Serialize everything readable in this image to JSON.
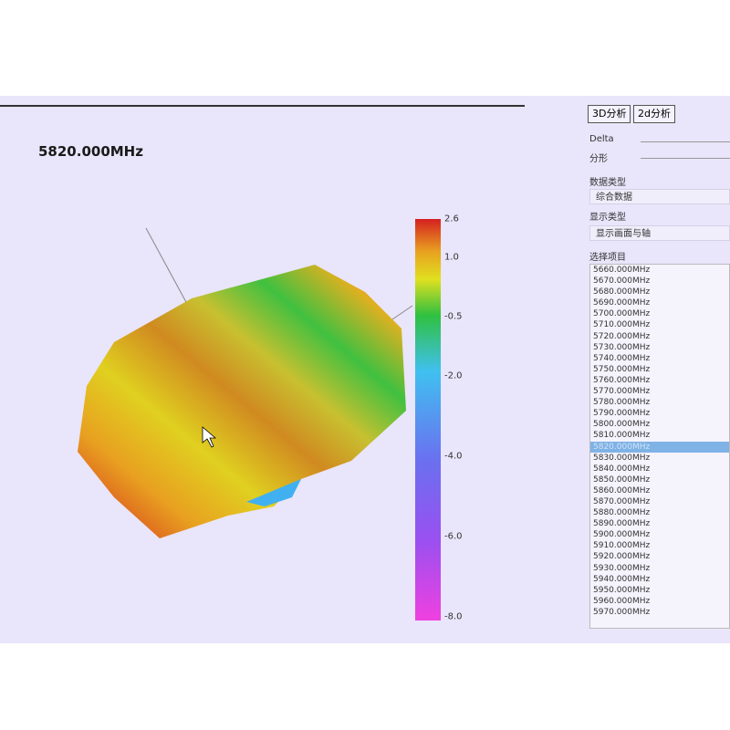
{
  "header": {
    "title": "5820.000MHz"
  },
  "colorbar": {
    "labels": [
      "2.6",
      "1.0",
      "-0.5",
      "-2.0",
      "-4.0",
      "-6.0",
      "-8.0"
    ]
  },
  "panel": {
    "tabs": [
      "3D分析",
      "2d分析"
    ],
    "sliders": [
      "Delta",
      "分形"
    ],
    "data_type": {
      "label": "数据类型",
      "value": "综合数据"
    },
    "display_type": {
      "label": "显示类型",
      "value": "显示画面与轴"
    },
    "select": {
      "label": "选择项目",
      "selected": 16,
      "items": [
        "5660.000MHz",
        "5670.000MHz",
        "5680.000MHz",
        "5690.000MHz",
        "5700.000MHz",
        "5710.000MHz",
        "5720.000MHz",
        "5730.000MHz",
        "5740.000MHz",
        "5750.000MHz",
        "5760.000MHz",
        "5770.000MHz",
        "5780.000MHz",
        "5790.000MHz",
        "5800.000MHz",
        "5810.000MHz",
        "5820.000MHz",
        "5830.000MHz",
        "5840.000MHz",
        "5850.000MHz",
        "5860.000MHz",
        "5870.000MHz",
        "5880.000MHz",
        "5890.000MHz",
        "5900.000MHz",
        "5910.000MHz",
        "5920.000MHz",
        "5930.000MHz",
        "5940.000MHz",
        "5950.000MHz",
        "5960.000MHz",
        "5970.000MHz"
      ]
    }
  }
}
